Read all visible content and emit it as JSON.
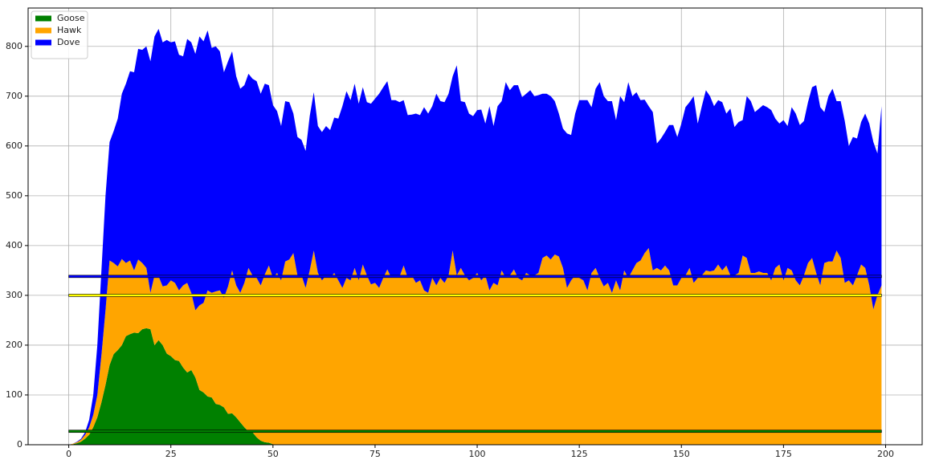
{
  "chart_data": {
    "type": "stacked-area",
    "x": [
      0,
      1,
      2,
      3,
      4,
      5,
      6,
      7,
      8,
      9,
      10,
      11,
      12,
      13,
      14,
      15,
      16,
      17,
      18,
      19,
      20,
      21,
      22,
      23,
      24,
      25,
      26,
      27,
      28,
      29,
      30,
      31,
      32,
      33,
      34,
      35,
      36,
      37,
      38,
      39,
      40,
      41,
      42,
      43,
      44,
      45,
      46,
      47,
      48,
      49,
      50,
      51,
      52,
      53,
      54,
      55,
      56,
      57,
      58,
      59,
      60,
      61,
      62,
      63,
      64,
      65,
      66,
      67,
      68,
      69,
      70,
      71,
      72,
      73,
      74,
      75,
      76,
      77,
      78,
      79,
      80,
      81,
      82,
      83,
      84,
      85,
      86,
      87,
      88,
      89,
      90,
      91,
      92,
      93,
      94,
      95,
      96,
      97,
      98,
      99,
      100,
      101,
      102,
      103,
      104,
      105,
      106,
      107,
      108,
      109,
      110,
      111,
      112,
      113,
      114,
      115,
      116,
      117,
      118,
      119,
      120,
      121,
      122,
      123,
      124,
      125,
      126,
      127,
      128,
      129,
      130,
      131,
      132,
      133,
      134,
      135,
      136,
      137,
      138,
      139,
      140,
      141,
      142,
      143,
      144,
      145,
      146,
      147,
      148,
      149,
      150,
      151,
      152,
      153,
      154,
      155,
      156,
      157,
      158,
      159,
      160,
      161,
      162,
      163,
      164,
      165,
      166,
      167,
      168,
      169,
      170,
      171,
      172,
      173,
      174,
      175,
      176,
      177,
      178,
      179,
      180,
      181,
      182,
      183,
      184,
      185,
      186,
      187,
      188,
      189,
      190,
      191,
      192,
      193,
      194,
      195,
      196,
      197,
      198,
      199
    ],
    "series": [
      {
        "name": "Goose",
        "color": "#008000",
        "values": [
          0,
          1,
          3,
          6,
          12,
          20,
          35,
          55,
          85,
          120,
          160,
          182,
          190,
          200,
          218,
          222,
          225,
          224,
          232,
          234,
          232,
          200,
          210,
          200,
          183,
          178,
          170,
          168,
          155,
          145,
          150,
          135,
          110,
          105,
          97,
          95,
          82,
          80,
          75,
          62,
          63,
          55,
          45,
          35,
          27,
          25,
          15,
          8,
          5,
          4,
          1,
          0,
          0,
          0,
          0,
          0,
          0,
          0,
          0,
          0,
          0,
          0,
          0,
          0,
          0,
          0,
          0,
          0,
          0,
          0,
          0,
          0,
          0,
          0,
          0,
          0,
          0,
          0,
          0,
          0,
          0,
          0,
          0,
          0,
          0,
          0,
          0,
          0,
          0,
          0,
          0,
          0,
          0,
          0,
          0,
          0,
          0,
          0,
          0,
          0,
          0,
          0,
          0,
          0,
          0,
          0,
          0,
          0,
          0,
          0,
          0,
          0,
          0,
          0,
          0,
          0,
          0,
          0,
          0,
          0,
          0,
          0,
          0,
          0,
          0,
          0,
          0,
          0,
          0,
          0,
          0,
          0,
          0,
          0,
          0,
          0,
          0,
          0,
          0,
          0,
          0,
          0,
          0,
          0,
          0,
          0,
          0,
          0,
          0,
          0,
          0,
          0,
          0,
          0,
          0,
          0,
          0,
          0,
          0,
          0,
          0,
          0,
          0,
          0,
          0,
          0,
          0,
          0,
          0,
          0,
          0,
          0,
          0,
          0,
          0,
          0,
          0,
          0,
          0,
          0,
          0,
          0,
          0,
          0,
          0,
          0,
          0,
          0,
          0,
          0,
          0,
          0,
          0,
          0,
          0,
          0,
          0,
          0,
          0,
          0
        ]
      },
      {
        "name": "Hawk",
        "color": "#ffa500",
        "values": [
          0,
          1,
          2,
          4,
          8,
          15,
          25,
          45,
          95,
          150,
          210,
          183,
          168,
          173,
          147,
          148,
          125,
          148,
          133,
          121,
          73,
          140,
          128,
          118,
          137,
          152,
          155,
          142,
          165,
          180,
          155,
          135,
          170,
          180,
          213,
          210,
          226,
          230,
          220,
          256,
          287,
          265,
          260,
          290,
          328,
          315,
          320,
          312,
          337,
          356,
          334,
          345,
          330,
          368,
          372,
          385,
          340,
          340,
          315,
          350,
          390,
          345,
          330,
          340,
          335,
          345,
          330,
          315,
          335,
          330,
          355,
          330,
          362,
          340,
          322,
          325,
          315,
          335,
          352,
          335,
          340,
          338,
          360,
          335,
          340,
          325,
          330,
          310,
          305,
          335,
          320,
          335,
          325,
          340,
          390,
          340,
          355,
          340,
          330,
          335,
          345,
          330,
          340,
          310,
          325,
          320,
          350,
          335,
          340,
          352,
          335,
          330,
          345,
          340,
          340,
          345,
          375,
          380,
          372,
          382,
          378,
          355,
          315,
          330,
          340,
          335,
          330,
          310,
          345,
          355,
          335,
          318,
          325,
          305,
          330,
          310,
          350,
          335,
          350,
          365,
          370,
          385,
          395,
          350,
          355,
          350,
          360,
          350,
          320,
          320,
          335,
          340,
          355,
          325,
          335,
          340,
          350,
          348,
          350,
          362,
          350,
          360,
          340,
          340,
          345,
          380,
          375,
          345,
          345,
          348,
          345,
          345,
          330,
          355,
          362,
          330,
          355,
          350,
          330,
          320,
          340,
          365,
          375,
          345,
          320,
          365,
          368,
          368,
          390,
          375,
          325,
          330,
          320,
          340,
          362,
          355,
          320,
          272,
          300,
          320
        ]
      },
      {
        "name": "Dove",
        "color": "#0000ff",
        "values": [
          0,
          0,
          1,
          2,
          5,
          15,
          40,
          100,
          170,
          230,
          238,
          265,
          297,
          332,
          360,
          380,
          398,
          423,
          428,
          445,
          465,
          480,
          497,
          490,
          493,
          478,
          485,
          473,
          460,
          490,
          503,
          515,
          540,
          525,
          522,
          492,
          492,
          480,
          453,
          452,
          440,
          420,
          410,
          397,
          390,
          395,
          395,
          385,
          383,
          362,
          347,
          325,
          310,
          322,
          316,
          280,
          278,
          272,
          275,
          310,
          318,
          295,
          298,
          300,
          297,
          312,
          325,
          365,
          375,
          362,
          370,
          355,
          356,
          348,
          363,
          370,
          390,
          383,
          378,
          357,
          352,
          350,
          332,
          327,
          323,
          340,
          332,
          368,
          360,
          345,
          385,
          355,
          363,
          365,
          350,
          422,
          335,
          348,
          335,
          325,
          327,
          343,
          305,
          370,
          315,
          360,
          340,
          393,
          372,
          370,
          387,
          368,
          360,
          372,
          360,
          357,
          330,
          325,
          328,
          308,
          287,
          280,
          310,
          292,
          325,
          357,
          362,
          382,
          333,
          360,
          393,
          382,
          365,
          385,
          322,
          390,
          338,
          393,
          350,
          343,
          322,
          308,
          285,
          318,
          250,
          265,
          268,
          292,
          322,
          298,
          310,
          338,
          333,
          375,
          310,
          340,
          362,
          352,
          330,
          330,
          338,
          305,
          335,
          298,
          303,
          272,
          325,
          345,
          323,
          327,
          337,
          333,
          342,
          300,
          283,
          322,
          285,
          328,
          335,
          322,
          310,
          323,
          343,
          377,
          358,
          303,
          332,
          347,
          300,
          315,
          325,
          270,
          298,
          275,
          286,
          310,
          325,
          336,
          285,
          360
        ]
      }
    ],
    "hlines": [
      {
        "value": 27,
        "color": "#008000"
      },
      {
        "value": 300,
        "color": "#ffff00"
      },
      {
        "value": 338,
        "color": "#0000ff"
      }
    ],
    "xlim": [
      -9.95,
      208.95
    ],
    "ylim": [
      0,
      877
    ],
    "xticks": [
      0,
      25,
      50,
      75,
      100,
      125,
      150,
      175,
      200
    ],
    "yticks": [
      0,
      100,
      200,
      300,
      400,
      500,
      600,
      700,
      800
    ],
    "grid": true,
    "legend": "upper-left"
  }
}
